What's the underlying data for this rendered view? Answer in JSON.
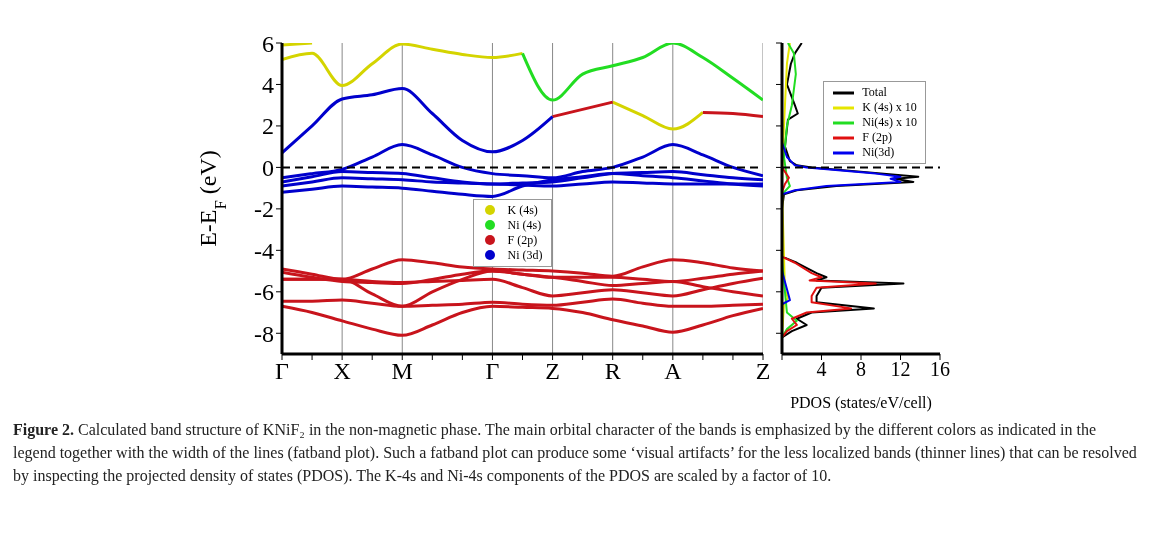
{
  "chart_data": [
    {
      "type": "line",
      "ylabel": "E-E$_{F}$ (eV)",
      "categories": [
        "Γ",
        null,
        "X",
        null,
        "M",
        null,
        null,
        "Γ",
        null,
        "Z",
        null,
        "R",
        null,
        "A",
        null,
        null,
        "Z"
      ],
      "ylim": [
        -9,
        6
      ],
      "yticks": [
        -8,
        -6,
        -4,
        -2,
        0,
        2,
        4,
        6
      ],
      "grid": "x",
      "legend": "center",
      "ref_lines": [
        {
          "axis": "y",
          "value": 0,
          "color": "#000000",
          "line_style": "dashed"
        }
      ],
      "annotations": [
        "Figure 2. Calculated band structure of KNiF₂ in the non-magnetic phase. The main orbital character of the bands is emphasized by the different colors as indicated in the legend together with the width of the lines (fatband plot). Such a fatband plot can produce some ‘visual artifacts’ for the less localized bands (thinner lines) that can be resolved by inspecting the projected density of states (PDOS). The K-4s and Ni-4s components of the PDOS are scaled by a factor of 10."
      ],
      "series": [
        {
          "name": "K (4s)",
          "color": "#d4d400",
          "values": [
            5.2,
            5.5,
            3.95,
            5.0,
            5.95,
            5.7,
            5.45,
            5.3,
            5.5,
            null,
            null,
            null,
            null,
            null,
            null,
            null,
            null
          ]
        },
        {
          "color": "#d4d400",
          "values": [
            5.9,
            6.0,
            null,
            null,
            null,
            null,
            null,
            null,
            null,
            null,
            null,
            null,
            null,
            null,
            null,
            null,
            null
          ]
        },
        {
          "color": "#d4d400",
          "values": [
            null,
            null,
            null,
            null,
            null,
            null,
            null,
            null,
            null,
            null,
            null,
            3.15,
            2.5,
            1.85,
            2.65,
            null,
            null
          ]
        },
        {
          "name": "Ni (4s)",
          "color": "#22dd22",
          "values": [
            null,
            null,
            null,
            null,
            null,
            null,
            null,
            null,
            5.5,
            3.25,
            4.5,
            4.9,
            5.3,
            6.0,
            5.3,
            4.3,
            3.25
          ]
        },
        {
          "name": "F (2p)",
          "color": "#c8141c",
          "values": [
            -4.9,
            -5.15,
            -5.4,
            -4.9,
            -4.45,
            -4.6,
            -4.8,
            -4.9,
            -4.95,
            -5.0,
            -5.1,
            -5.25,
            -4.8,
            -4.45,
            -4.6,
            -4.85,
            -5.0
          ]
        },
        {
          "color": "#c8141c",
          "values": [
            -5.05,
            -5.3,
            -5.5,
            -5.55,
            -5.6,
            -5.4,
            -5.15,
            -5.0,
            -5.15,
            -5.3,
            -5.3,
            -5.3,
            -5.4,
            -5.5,
            -5.35,
            -5.15,
            -5.0
          ]
        },
        {
          "color": "#c8141c",
          "values": [
            -5.4,
            -5.4,
            -5.4,
            -5.5,
            -5.55,
            -5.5,
            -5.45,
            -5.4,
            -5.8,
            -6.2,
            -6.05,
            -5.9,
            -6.05,
            -6.2,
            -5.9,
            -5.6,
            -5.35
          ]
        },
        {
          "color": "#c8141c",
          "values": [
            -6.45,
            -6.45,
            -6.4,
            -6.55,
            -6.7,
            -6.65,
            -6.6,
            -6.5,
            -6.6,
            -6.65,
            -6.5,
            -6.35,
            -6.55,
            -6.7,
            -6.7,
            -6.65,
            -6.6
          ]
        },
        {
          "color": "#c8141c",
          "values": [
            -6.7,
            -7.0,
            -7.4,
            -7.8,
            -8.1,
            -7.6,
            -7.0,
            -6.7,
            -6.75,
            -6.8,
            -7.0,
            -7.35,
            -7.65,
            -7.95,
            -7.6,
            -7.15,
            -6.8
          ]
        },
        {
          "color": "#c8141c",
          "values": [
            -5.4,
            -5.4,
            -5.4,
            -6.1,
            -6.7,
            -6.0,
            -5.4,
            -5.0,
            -5.15,
            -5.3,
            -5.5,
            -5.7,
            -5.6,
            -5.5,
            -5.75,
            -6.0,
            -6.2
          ]
        },
        {
          "color": "#c8141c",
          "values": [
            null,
            null,
            null,
            null,
            null,
            null,
            null,
            null,
            null,
            2.45,
            2.8,
            3.15,
            null,
            null,
            2.65,
            2.6,
            2.45
          ]
        },
        {
          "name": "Ni (3d)",
          "color": "#0000cc",
          "values": [
            0.7,
            2.0,
            3.3,
            3.5,
            3.8,
            2.6,
            1.3,
            0.75,
            1.3,
            2.45,
            null,
            null,
            null,
            null,
            null,
            null,
            null
          ]
        },
        {
          "color": "#0000cc",
          "values": [
            -0.5,
            -0.3,
            -0.1,
            0.5,
            1.1,
            0.6,
            0,
            -0.3,
            -0.4,
            -0.5,
            -0.2,
            0,
            0.5,
            1.1,
            0.6,
            0,
            -0.4
          ]
        },
        {
          "color": "#0000cc",
          "values": [
            -0.7,
            -0.45,
            -0.2,
            -0.25,
            -0.3,
            -0.5,
            -0.7,
            -0.8,
            -0.75,
            -0.7,
            -0.5,
            -0.3,
            -0.25,
            -0.2,
            -0.35,
            -0.5,
            -0.6
          ]
        },
        {
          "color": "#0000cc",
          "values": [
            -1.2,
            -1.05,
            -0.9,
            -0.95,
            -1.0,
            -1.15,
            -1.3,
            -1.4,
            -0.9,
            -0.6,
            -0.45,
            -0.3,
            -0.4,
            -0.5,
            -0.65,
            -0.8,
            -0.9
          ]
        },
        {
          "color": "#0000cc",
          "values": [
            -0.9,
            -0.7,
            -0.5,
            -0.55,
            -0.6,
            -0.7,
            -0.75,
            -0.8,
            -0.85,
            -0.9,
            -0.8,
            -0.7,
            -0.75,
            -0.8,
            -0.8,
            -0.8,
            -0.8
          ]
        }
      ]
    },
    {
      "type": "line",
      "xlabel": "PDOS (states/eV/cell)",
      "xlim": [
        0,
        16
      ],
      "xticks": [
        {
          "value": 0,
          "label": null
        },
        4,
        8,
        12,
        16
      ],
      "ylim": [
        -9,
        6
      ],
      "yticks": [
        -8,
        -6,
        -4,
        -2,
        0,
        2,
        4,
        6
      ],
      "tick_labels": "x",
      "legend": "top right",
      "ref_lines": [
        {
          "axis": "y",
          "value": 0,
          "color": "#000000",
          "line_style": "dashed"
        }
      ],
      "series": [
        {
          "name": "Total",
          "color": "#000000",
          "x": [
            2.0,
            1.3,
            0.9,
            0.5,
            1.3,
            1.6,
            0.6,
            0.3,
            0.8,
            1.5,
            3,
            10,
            13.8,
            11.5,
            13.3,
            5.5,
            1.5,
            0.2,
            0,
            0,
            1.5,
            3.5,
            4.5,
            3.5,
            12.3,
            4,
            3.5,
            3.5,
            9.3,
            3,
            1.5,
            2.5,
            1,
            0
          ],
          "values": [
            6,
            5.5,
            5,
            4,
            3,
            2.6,
            2.3,
            1,
            0.3,
            0.1,
            0,
            -0.3,
            -0.45,
            -0.55,
            -0.7,
            -0.9,
            -1.1,
            -1.3,
            -2,
            -4.3,
            -4.6,
            -5.1,
            -5.3,
            -5.45,
            -5.6,
            -5.8,
            -6.2,
            -6.5,
            -6.8,
            -7.0,
            -7.3,
            -7.6,
            -7.9,
            -8.2
          ]
        },
        {
          "name": "K (4s) x 10",
          "color": "#e6e600",
          "x": [
            0.8,
            0.5,
            0.3,
            0.1,
            0,
            0.3,
            0.6,
            0.2,
            0
          ],
          "values": [
            6,
            5,
            3,
            1,
            -1,
            -5.9,
            -6.3,
            -6.6,
            -8.2
          ]
        },
        {
          "name": "Ni(4s) x 10",
          "color": "#22dd22",
          "x": [
            0.6,
            1.2,
            1.4,
            1.0,
            0.5,
            0.2,
            0.5,
            0.8,
            0,
            0,
            0.5,
            1.5,
            0.5,
            0
          ],
          "values": [
            6,
            5.5,
            4.5,
            3,
            2,
            0.5,
            -0.5,
            -0.9,
            -1.3,
            -4.5,
            -7,
            -7.4,
            -7.8,
            -8.2
          ]
        },
        {
          "name": "F (2p)",
          "color": "#e01010",
          "x": [
            0,
            0.7,
            0.3,
            0,
            0,
            1.3,
            3,
            4,
            2.8,
            9.5,
            3.5,
            3,
            3,
            7,
            2.5,
            1,
            1.5,
            0.5,
            0
          ],
          "values": [
            0,
            -0.5,
            -0.8,
            -1.2,
            -4.3,
            -4.6,
            -5.1,
            -5.3,
            -5.45,
            -5.6,
            -5.8,
            -6.2,
            -6.5,
            -6.8,
            -7.0,
            -7.3,
            -7.6,
            -7.9,
            -8.2
          ]
        },
        {
          "name": "Ni(3d)",
          "color": "#0000ee",
          "x": [
            0,
            0.5,
            1.3,
            2.5,
            9.5,
            12,
            11,
            12,
            4.5,
            1.3,
            0,
            0,
            0.8,
            0,
            0
          ],
          "values": [
            1.2,
            0.5,
            0.1,
            0,
            -0.3,
            -0.45,
            -0.55,
            -0.7,
            -0.9,
            -1.1,
            -1.3,
            -5,
            -6.4,
            -6.6,
            -8.2
          ]
        }
      ]
    }
  ]
}
